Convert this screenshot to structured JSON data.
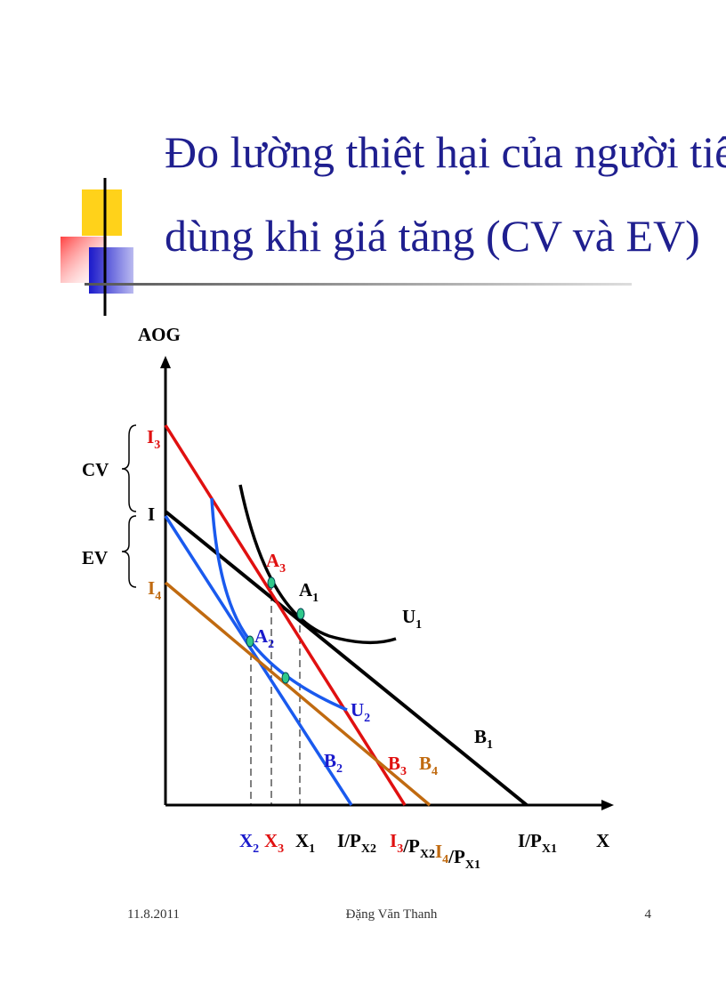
{
  "header": {
    "title_lines": [
      "Đo lường thiệt hại của người tiêu",
      "dùng khi giá tăng (CV và EV)"
    ]
  },
  "diagram": {
    "labels": [
      {
        "color": "#000000",
        "segments": [
          {
            "text": "AOG"
          }
        ]
      },
      {
        "color": "#000000",
        "segments": [
          {
            "text": "X"
          }
        ]
      },
      {
        "color": "#e01010",
        "segments": [
          {
            "text": "I",
            "sub": "3"
          }
        ]
      },
      {
        "color": "#000000",
        "segments": [
          {
            "text": "I"
          }
        ]
      },
      {
        "color": "#c06a10",
        "segments": [
          {
            "text": "I",
            "sub": "4"
          }
        ]
      },
      {
        "color": "#000000",
        "segments": [
          {
            "text": "CV"
          }
        ]
      },
      {
        "color": "#000000",
        "segments": [
          {
            "text": "EV"
          }
        ]
      },
      {
        "color": "#e01010",
        "segments": [
          {
            "text": "A",
            "sub": "3"
          }
        ]
      },
      {
        "color": "#000000",
        "segments": [
          {
            "text": "A",
            "sub": "1"
          }
        ]
      },
      {
        "color": "#1a1acc",
        "segments": [
          {
            "text": "A",
            "sub": "2"
          }
        ]
      },
      {
        "color": "#000000",
        "segments": [
          {
            "text": "U",
            "sub": "1"
          }
        ]
      },
      {
        "color": "#1a1acc",
        "segments": [
          {
            "text": "U",
            "sub": "2"
          }
        ]
      },
      {
        "color": "#000000",
        "segments": [
          {
            "text": "B",
            "sub": "1"
          }
        ]
      },
      {
        "color": "#1a1acc",
        "segments": [
          {
            "text": "B",
            "sub": "2"
          }
        ]
      },
      {
        "color": "#e01010",
        "segments": [
          {
            "text": "B",
            "sub": "3"
          }
        ]
      },
      {
        "color": "#c06a10",
        "segments": [
          {
            "text": "B",
            "sub": "4"
          }
        ]
      },
      {
        "color": "#1a1acc",
        "segments": [
          {
            "text": "X",
            "sub": "2"
          }
        ]
      },
      {
        "color": "#e01010",
        "segments": [
          {
            "text": "X",
            "sub": "3"
          }
        ]
      },
      {
        "color": "#000000",
        "segments": [
          {
            "text": "X",
            "sub": "1"
          }
        ]
      },
      {
        "color": "#000000",
        "segments": [
          {
            "text": "I/P",
            "sub": "X2"
          }
        ]
      },
      {
        "color": "#000000",
        "segments": [
          {
            "text": "I",
            "sub": "3",
            "color": "#e01010"
          },
          {
            "text": "/P",
            "sub": "X2"
          },
          {
            "text": "I",
            "sub": "4",
            "color": "#c06a10"
          },
          {
            "text": "/P",
            "sub": "X1"
          }
        ]
      },
      {
        "color": "#000000",
        "segments": [
          {
            "text": "I/P",
            "sub": "X1"
          }
        ]
      }
    ]
  },
  "footer": {
    "date": "11.8.2011",
    "author": "Đặng Văn Thanh",
    "page": "4"
  }
}
